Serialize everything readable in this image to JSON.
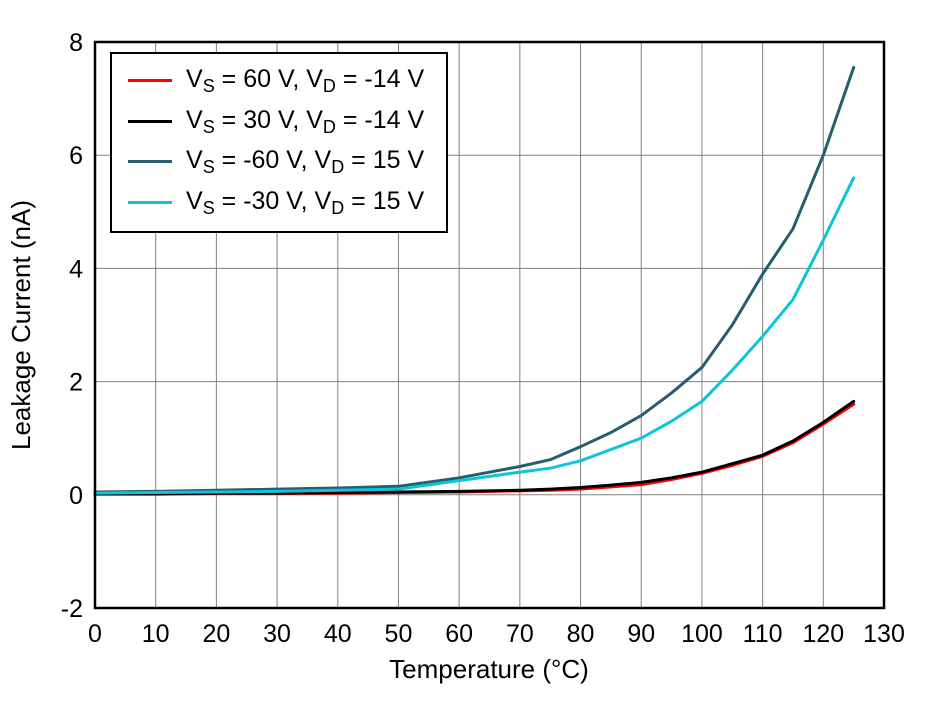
{
  "chart_data": {
    "type": "line",
    "title": "",
    "xlabel": "Temperature (°C)",
    "ylabel": "Leakage Current (nA)",
    "xlim": [
      0,
      130
    ],
    "ylim": [
      -2,
      8
    ],
    "xticks": [
      0,
      10,
      20,
      30,
      40,
      50,
      60,
      70,
      80,
      90,
      100,
      110,
      120,
      130
    ],
    "yticks": [
      -2,
      0,
      2,
      4,
      6,
      8
    ],
    "grid": true,
    "legend_position": "top-left",
    "x": [
      0,
      10,
      20,
      30,
      40,
      50,
      60,
      70,
      75,
      80,
      85,
      90,
      95,
      100,
      105,
      110,
      115,
      120,
      125
    ],
    "series": [
      {
        "name": "VS = 60 V, VD = -14 V",
        "color": "#ff0000",
        "values": [
          0.01,
          0.01,
          0.02,
          0.02,
          0.03,
          0.04,
          0.05,
          0.07,
          0.08,
          0.1,
          0.14,
          0.18,
          0.27,
          0.38,
          0.52,
          0.68,
          0.92,
          1.25,
          1.6
        ],
        "label_parts": [
          {
            "t": "V"
          },
          {
            "t": "S",
            "sub": true
          },
          {
            "t": " = 60 V, V"
          },
          {
            "t": "D",
            "sub": true
          },
          {
            "t": " = -14 V"
          }
        ]
      },
      {
        "name": "VS = 30 V, VD = -14 V",
        "color": "#000000",
        "values": [
          0.02,
          0.02,
          0.03,
          0.03,
          0.04,
          0.05,
          0.06,
          0.08,
          0.1,
          0.13,
          0.17,
          0.22,
          0.3,
          0.4,
          0.55,
          0.7,
          0.95,
          1.28,
          1.65
        ],
        "label_parts": [
          {
            "t": "V"
          },
          {
            "t": "S",
            "sub": true
          },
          {
            "t": " = 30 V, V"
          },
          {
            "t": "D",
            "sub": true
          },
          {
            "t": " = -14 V"
          }
        ]
      },
      {
        "name": "VS = -60 V, VD = 15 V",
        "color": "#255e6e",
        "values": [
          0.05,
          0.06,
          0.08,
          0.1,
          0.12,
          0.15,
          0.3,
          0.5,
          0.62,
          0.85,
          1.1,
          1.4,
          1.8,
          2.25,
          3.0,
          3.9,
          4.7,
          6.0,
          7.55
        ],
        "label_parts": [
          {
            "t": "V"
          },
          {
            "t": "S",
            "sub": true
          },
          {
            "t": " = -60 V, V"
          },
          {
            "t": "D",
            "sub": true
          },
          {
            "t": " = 15 V"
          }
        ]
      },
      {
        "name": "VS = -30 V, VD = 15 V",
        "color": "#0dc4d9",
        "values": [
          0.03,
          0.04,
          0.05,
          0.06,
          0.08,
          0.1,
          0.25,
          0.4,
          0.47,
          0.6,
          0.8,
          1.0,
          1.3,
          1.65,
          2.2,
          2.8,
          3.45,
          4.5,
          5.6
        ],
        "label_parts": [
          {
            "t": "V"
          },
          {
            "t": "S",
            "sub": true
          },
          {
            "t": " = -30 V, V"
          },
          {
            "t": "D",
            "sub": true
          },
          {
            "t": " = 15 V"
          }
        ]
      }
    ],
    "styles": {
      "background": "#ffffff",
      "axis_color": "#000000",
      "grid_color": "#808080",
      "line_width": 3
    }
  }
}
